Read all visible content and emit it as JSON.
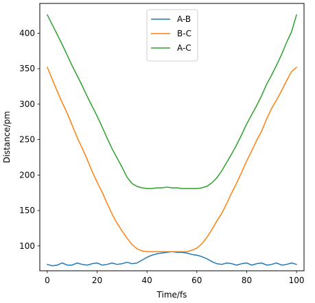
{
  "chart_data": {
    "type": "line",
    "title": "",
    "xlabel": "Time/fs",
    "ylabel": "Distance/pm",
    "xlim": [
      -3,
      103
    ],
    "ylim": [
      65,
      442
    ],
    "xticks": [
      0,
      20,
      40,
      60,
      80,
      100
    ],
    "yticks": [
      100,
      150,
      200,
      250,
      300,
      350,
      400
    ],
    "grid": false,
    "legend_position": "top-center",
    "series": [
      {
        "name": "A-B",
        "color": "#1f77b4",
        "x": [
          0,
          2,
          4,
          6,
          8,
          10,
          12,
          14,
          16,
          18,
          20,
          22,
          24,
          26,
          28,
          30,
          32,
          34,
          36,
          38,
          40,
          42,
          44,
          46,
          48,
          50,
          52,
          54,
          56,
          58,
          60,
          62,
          64,
          66,
          68,
          70,
          72,
          74,
          76,
          78,
          80,
          82,
          84,
          86,
          88,
          90,
          92,
          94,
          96,
          98,
          100
        ],
        "y": [
          74,
          72,
          73,
          76,
          73,
          73,
          76,
          74,
          73,
          75,
          76,
          73,
          74,
          76,
          74,
          75,
          77,
          75,
          76,
          80,
          84,
          87,
          89,
          90,
          91,
          92,
          91,
          91,
          90,
          88,
          87,
          85,
          82,
          78,
          75,
          74,
          76,
          75,
          73,
          75,
          76,
          73,
          75,
          76,
          73,
          74,
          76,
          73,
          74,
          76,
          74
        ]
      },
      {
        "name": "B-C",
        "color": "#ff7f0e",
        "x": [
          0,
          2,
          4,
          6,
          8,
          10,
          12,
          14,
          16,
          18,
          20,
          22,
          24,
          26,
          28,
          30,
          32,
          34,
          36,
          38,
          40,
          42,
          44,
          46,
          48,
          50,
          52,
          54,
          56,
          58,
          60,
          62,
          64,
          66,
          68,
          70,
          72,
          74,
          76,
          78,
          80,
          82,
          84,
          86,
          88,
          90,
          92,
          94,
          96,
          98,
          100
        ],
        "y": [
          352,
          335,
          318,
          302,
          287,
          270,
          253,
          238,
          222,
          205,
          190,
          176,
          160,
          145,
          132,
          121,
          111,
          102,
          96,
          93,
          92,
          92,
          92,
          92,
          92,
          92,
          92,
          92,
          92,
          94,
          97,
          103,
          112,
          123,
          135,
          146,
          160,
          175,
          189,
          204,
          220,
          234,
          249,
          262,
          279,
          294,
          306,
          319,
          333,
          346,
          352
        ]
      },
      {
        "name": "A-C",
        "color": "#2ca02c",
        "x": [
          0,
          2,
          4,
          6,
          8,
          10,
          12,
          14,
          16,
          18,
          20,
          22,
          24,
          26,
          28,
          30,
          32,
          34,
          36,
          38,
          40,
          42,
          44,
          46,
          48,
          50,
          52,
          54,
          56,
          58,
          60,
          62,
          64,
          66,
          68,
          70,
          72,
          74,
          76,
          78,
          80,
          82,
          84,
          86,
          88,
          90,
          92,
          94,
          96,
          98,
          100
        ],
        "y": [
          426,
          412,
          398,
          384,
          369,
          354,
          340,
          326,
          311,
          297,
          283,
          268,
          252,
          237,
          224,
          211,
          197,
          188,
          184,
          182,
          181,
          181,
          182,
          182,
          183,
          182,
          182,
          181,
          181,
          181,
          181,
          182,
          184,
          189,
          196,
          206,
          218,
          230,
          243,
          257,
          272,
          285,
          298,
          312,
          328,
          341,
          355,
          370,
          387,
          402,
          426
        ]
      }
    ]
  }
}
